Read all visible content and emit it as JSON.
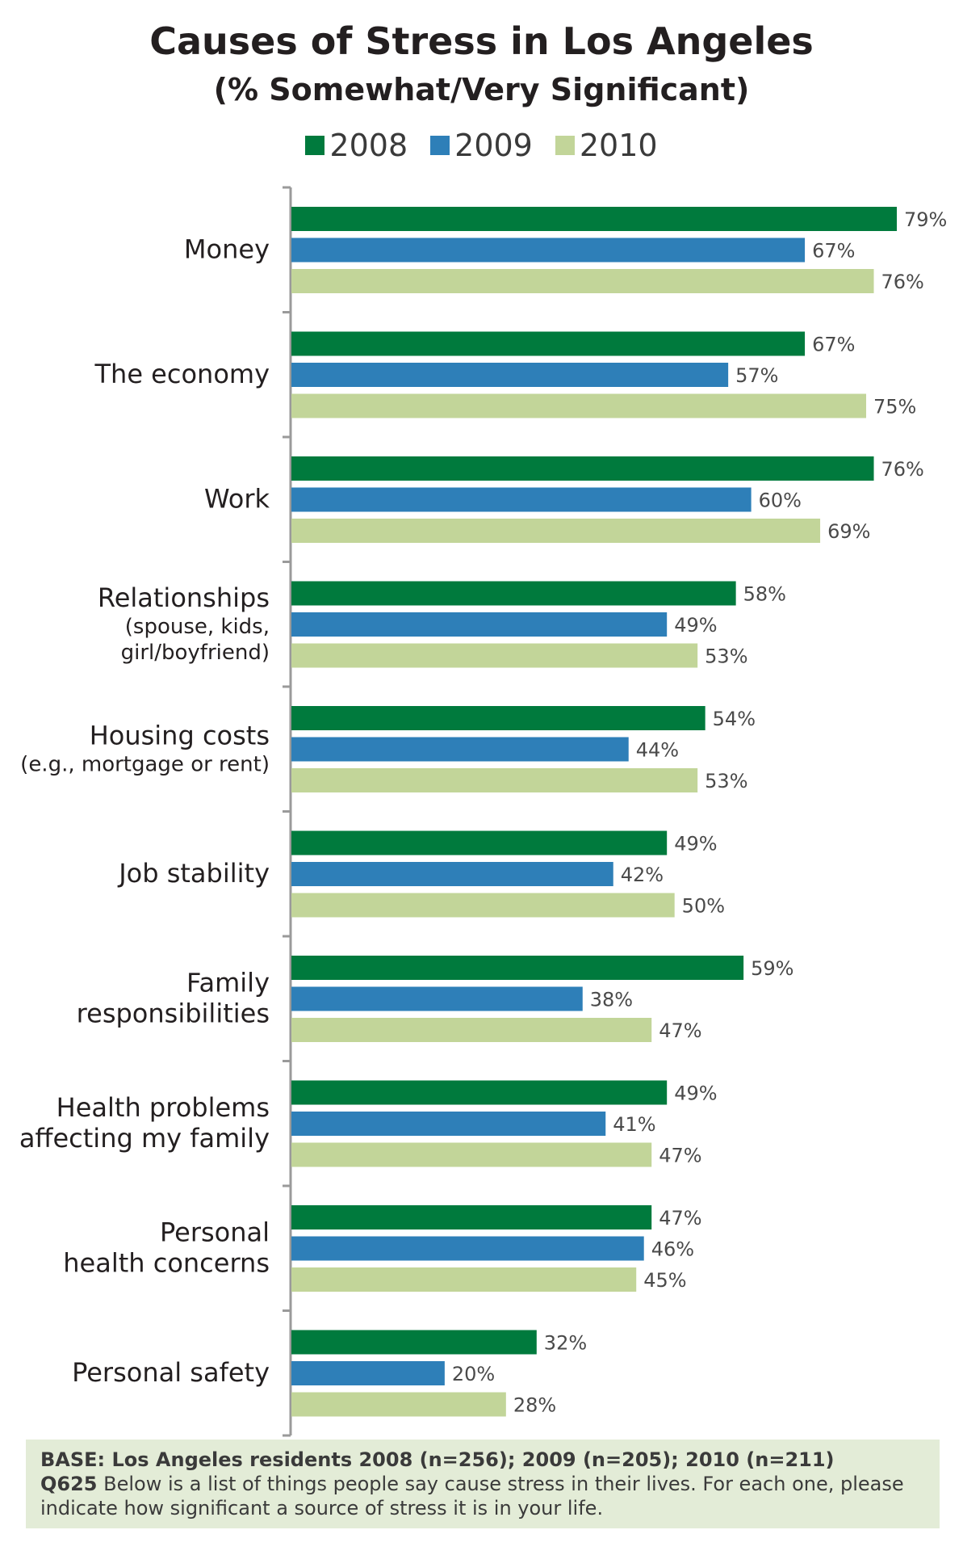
{
  "chart_data": {
    "type": "bar",
    "orientation": "horizontal",
    "title": "Causes of Stress in Los Angeles",
    "subtitle": "(% Somewhat/Very Significant)",
    "categories": [
      {
        "main": [
          "Money"
        ],
        "sub": []
      },
      {
        "main": [
          "The economy"
        ],
        "sub": []
      },
      {
        "main": [
          "Work"
        ],
        "sub": []
      },
      {
        "main": [
          "Relationships"
        ],
        "sub": [
          "(spouse, kids,",
          "girl/boyfriend)"
        ]
      },
      {
        "main": [
          "Housing costs"
        ],
        "sub": [
          "(e.g., mortgage or rent)"
        ]
      },
      {
        "main": [
          "Job stability"
        ],
        "sub": []
      },
      {
        "main": [
          "Family",
          "responsibilities"
        ],
        "sub": []
      },
      {
        "main": [
          "Health problems",
          "affecting my family"
        ],
        "sub": []
      },
      {
        "main": [
          "Personal",
          "health concerns"
        ],
        "sub": []
      },
      {
        "main": [
          "Personal safety"
        ],
        "sub": []
      }
    ],
    "series": [
      {
        "name": "2008",
        "color": "#007a3d",
        "values": [
          79,
          67,
          76,
          58,
          54,
          49,
          59,
          49,
          47,
          32
        ]
      },
      {
        "name": "2009",
        "color": "#2e7fb8",
        "values": [
          67,
          57,
          60,
          49,
          44,
          42,
          38,
          41,
          46,
          20
        ]
      },
      {
        "name": "2010",
        "color": "#c2d599",
        "values": [
          76,
          75,
          69,
          53,
          53,
          50,
          47,
          47,
          45,
          28
        ]
      }
    ],
    "value_suffix": "%",
    "xlim": [
      0,
      79
    ],
    "legend_position": "top-center",
    "grid": false
  },
  "footnote": {
    "base": "BASE: Los Angeles residents  2008 (n=256); 2009 (n=205); 2010 (n=211)",
    "question_id": "Q625",
    "question_text": " Below is a list of things people say cause stress in their lives. For each one, please indicate how significant a source of stress it is in your life."
  }
}
